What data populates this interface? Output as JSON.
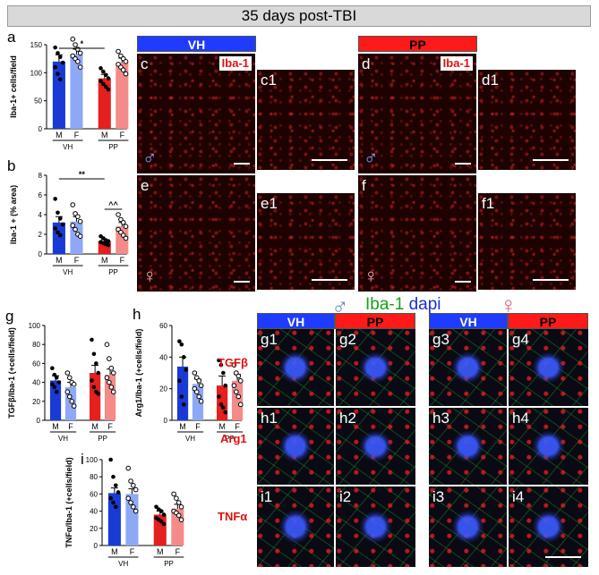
{
  "banner": "35 days post-TBI",
  "panel_letters": {
    "a": "a",
    "b": "b",
    "g": "g",
    "h": "h",
    "i": "i"
  },
  "micro": {
    "vh_header": "VH",
    "pp_header": "PP",
    "stain": "Iba-1",
    "labels": [
      "c",
      "c1",
      "d",
      "d1",
      "e",
      "e1",
      "f",
      "f1"
    ],
    "male_symbol": "♂",
    "female_symbol": "♀"
  },
  "confocal": {
    "title_iba": "Iba-1",
    "title_dapi": "dapi",
    "male_symbol": "♂",
    "female_symbol": "♀",
    "headers": [
      "VH",
      "PP",
      "VH",
      "PP"
    ],
    "rows": [
      "TGFβ",
      "Arg1",
      "TNFα"
    ],
    "labels": [
      [
        "g1",
        "g2",
        "g3",
        "g4"
      ],
      [
        "h1",
        "h2",
        "h3",
        "h4"
      ],
      [
        "i1",
        "i2",
        "i3",
        "i4"
      ]
    ]
  },
  "colors": {
    "vh_m": "#1a3ad6",
    "vh_f": "#8fa8f5",
    "pp_m": "#e61f1f",
    "pp_f": "#f48a8a"
  },
  "chart_data": [
    {
      "panel": "a",
      "type": "bar",
      "ylabel": "Iba-1+ cells/field",
      "categories": [
        "M",
        "F",
        "M",
        "F"
      ],
      "groups": [
        "VH",
        "PP"
      ],
      "values": [
        120,
        133,
        90,
        118
      ],
      "errors": [
        12,
        9,
        7,
        8
      ],
      "ylim": [
        0,
        150
      ],
      "yticks": [
        0,
        50,
        100,
        150
      ],
      "points": [
        [
          145,
          135,
          128,
          118,
          110,
          98,
          88
        ],
        [
          160,
          150,
          142,
          135,
          130,
          125,
          120,
          110
        ],
        [
          108,
          102,
          96,
          90,
          85,
          80,
          75,
          70
        ],
        [
          138,
          130,
          125,
          120,
          115,
          110,
          105,
          98
        ]
      ],
      "sig": [
        {
          "from": 0,
          "to": 2,
          "text": "*"
        }
      ]
    },
    {
      "panel": "b",
      "type": "bar",
      "ylabel": "Iba-1 + (% area)",
      "categories": [
        "M",
        "F",
        "M",
        "F"
      ],
      "groups": [
        "VH",
        "PP"
      ],
      "values": [
        3.2,
        3.3,
        1.3,
        2.8
      ],
      "errors": [
        0.6,
        0.5,
        0.15,
        0.4
      ],
      "ylim": [
        0,
        8
      ],
      "yticks": [
        0,
        2,
        4,
        6,
        8
      ],
      "points": [
        [
          5.6,
          4.2,
          3.6,
          3.0,
          2.6,
          2.2,
          1.9
        ],
        [
          5.0,
          4.1,
          3.8,
          3.3,
          2.9,
          2.5,
          2.0,
          1.8
        ],
        [
          1.8,
          1.6,
          1.4,
          1.3,
          1.2,
          1.1,
          1.0,
          0.9
        ],
        [
          4.0,
          3.5,
          3.2,
          2.8,
          2.5,
          2.2,
          1.9,
          1.6
        ]
      ],
      "sig": [
        {
          "from": 0,
          "to": 2,
          "text": "**"
        },
        {
          "from": 2,
          "to": 3,
          "text": "^^"
        }
      ]
    },
    {
      "panel": "g",
      "type": "bar",
      "ylabel": "TGFβ/Iba-1 (+cells/field)",
      "categories": [
        "M",
        "F",
        "M",
        "F"
      ],
      "groups": [
        "VH",
        "PP"
      ],
      "values": [
        42,
        35,
        50,
        48
      ],
      "errors": [
        5,
        5,
        8,
        6
      ],
      "ylim": [
        0,
        100
      ],
      "yticks": [
        0,
        20,
        40,
        60,
        80,
        100
      ],
      "points": [
        [
          55,
          48,
          45,
          40,
          38,
          35,
          30
        ],
        [
          50,
          45,
          40,
          38,
          30,
          25,
          20,
          15
        ],
        [
          85,
          70,
          60,
          50,
          42,
          35,
          30,
          28
        ],
        [
          80,
          65,
          55,
          50,
          45,
          40,
          35,
          30
        ]
      ],
      "sig": []
    },
    {
      "panel": "h",
      "type": "bar",
      "ylabel": "Arg1/Iba-1 (+cells/field)",
      "categories": [
        "M",
        "F",
        "M",
        "F"
      ],
      "groups": [
        "VH",
        "PP"
      ],
      "values": [
        34,
        23,
        22,
        25
      ],
      "errors": [
        6,
        3,
        6,
        4
      ],
      "ylim": [
        0,
        60
      ],
      "yticks": [
        0,
        20,
        40,
        60
      ],
      "points": [
        [
          50,
          48,
          40,
          32,
          25,
          15,
          10
        ],
        [
          30,
          27,
          25,
          22,
          20,
          18,
          15,
          12
        ],
        [
          38,
          35,
          30,
          22,
          15,
          10,
          8,
          5
        ],
        [
          35,
          30,
          28,
          25,
          22,
          18,
          15,
          10
        ]
      ],
      "sig": []
    },
    {
      "panel": "i",
      "type": "bar",
      "ylabel": "TNFα/Iba-1 (+cells/field)",
      "categories": [
        "M",
        "F",
        "M",
        "F"
      ],
      "groups": [
        "VH",
        "PP"
      ],
      "values": [
        61,
        60,
        36,
        43
      ],
      "errors": [
        6,
        6,
        4,
        5
      ],
      "ylim": [
        0,
        100
      ],
      "yticks": [
        0,
        20,
        40,
        60,
        80,
        100
      ],
      "points": [
        [
          100,
          80,
          70,
          62,
          55,
          50,
          45
        ],
        [
          90,
          75,
          70,
          65,
          55,
          50,
          45,
          40
        ],
        [
          45,
          42,
          40,
          36,
          32,
          30,
          28,
          25
        ],
        [
          60,
          55,
          50,
          45,
          40,
          38,
          35,
          30
        ]
      ],
      "sig": []
    }
  ]
}
